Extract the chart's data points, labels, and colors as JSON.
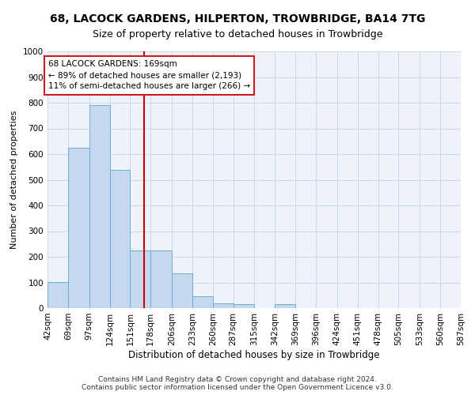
{
  "title": "68, LACOCK GARDENS, HILPERTON, TROWBRIDGE, BA14 7TG",
  "subtitle": "Size of property relative to detached houses in Trowbridge",
  "xlabel": "Distribution of detached houses by size in Trowbridge",
  "ylabel": "Number of detached properties",
  "footer_line1": "Contains HM Land Registry data © Crown copyright and database right 2024.",
  "footer_line2": "Contains public sector information licensed under the Open Government Licence v3.0.",
  "annotation_line1": "68 LACOCK GARDENS: 169sqm",
  "annotation_line2": "← 89% of detached houses are smaller (2,193)",
  "annotation_line3": "11% of semi-detached houses are larger (266) →",
  "bin_edges": [
    42,
    69,
    97,
    124,
    151,
    178,
    206,
    233,
    260,
    287,
    315,
    342,
    369,
    396,
    424,
    451,
    478,
    505,
    533,
    560,
    587
  ],
  "bar_heights": [
    103,
    625,
    790,
    540,
    225,
    225,
    135,
    45,
    20,
    15,
    0,
    15,
    0,
    0,
    0,
    0,
    0,
    0,
    0,
    0
  ],
  "bar_color": "#c5d8ee",
  "bar_edge_color": "#6baed6",
  "vline_x": 169,
  "vline_color": "#cc0000",
  "ylim": [
    0,
    1000
  ],
  "yticks": [
    0,
    100,
    200,
    300,
    400,
    500,
    600,
    700,
    800,
    900,
    1000
  ],
  "background_color": "#edf2fb",
  "grid_color": "#c8d4e8",
  "title_fontsize": 10,
  "subtitle_fontsize": 9,
  "axis_label_fontsize": 8.5,
  "ylabel_fontsize": 8,
  "tick_fontsize": 7.5,
  "annotation_fontsize": 7.5,
  "footer_fontsize": 6.5
}
